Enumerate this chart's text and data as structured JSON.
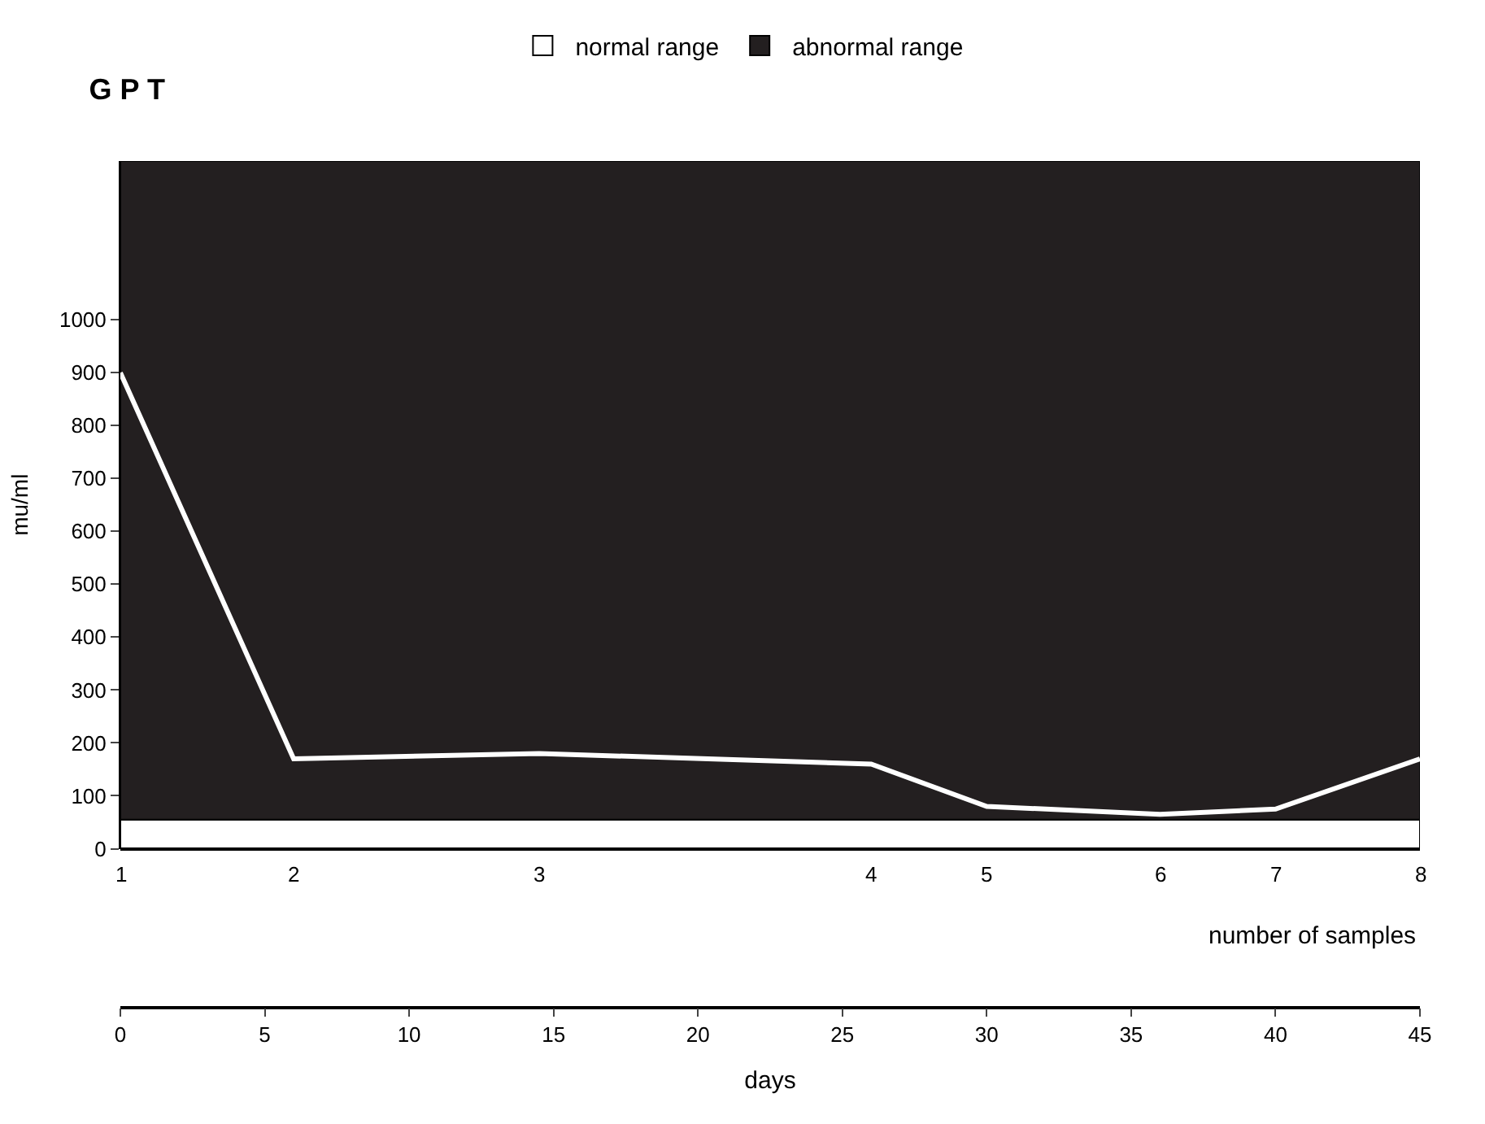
{
  "chart_data": {
    "type": "line",
    "title": "G P T",
    "ylabel": "mu/ml",
    "xlabel": "days",
    "x": [
      0,
      6,
      14.5,
      26,
      30,
      36,
      40,
      45
    ],
    "series": [
      {
        "color": "#ffffff",
        "values": [
          900,
          170,
          180,
          160,
          80,
          65,
          75,
          170
        ]
      }
    ],
    "xlim": [
      0,
      45
    ],
    "xticks": [
      0,
      5,
      10,
      15,
      20,
      25,
      30,
      35,
      40,
      45
    ],
    "ylim": [
      0,
      1300
    ],
    "yticks": [
      0,
      100,
      200,
      300,
      400,
      500,
      600,
      700,
      800,
      900,
      1000
    ],
    "annotations": [
      "1",
      "2",
      "3",
      "4",
      "5",
      "6",
      "7",
      "8",
      "number of samples"
    ],
    "bands": [
      {
        "axis": "y",
        "from": 0,
        "to": 55,
        "label": "normal range",
        "color": "#ffffff"
      },
      {
        "axis": "y",
        "from": 55,
        "to": 1300,
        "label": "abnormal range",
        "color": "#231f20"
      }
    ],
    "legend": "top",
    "grid": false,
    "marker": "none",
    "line_style": "solid"
  }
}
